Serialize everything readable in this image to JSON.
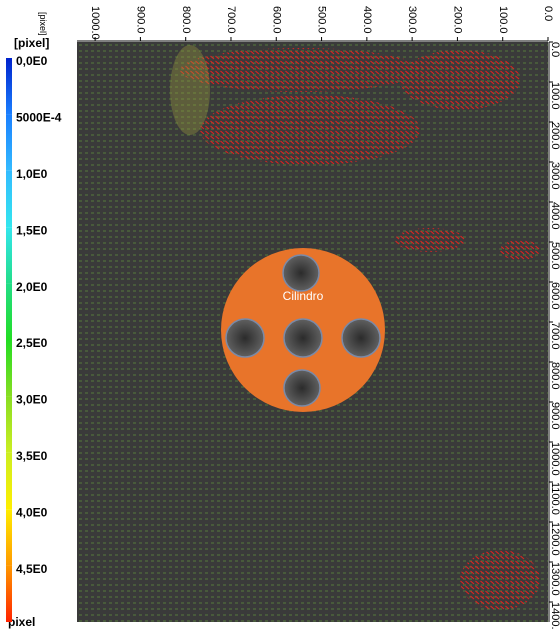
{
  "chart_data": {
    "type": "vector_field",
    "x_axis_label": "[pixel]",
    "xlim": [
      1040,
      0
    ],
    "xticks": [
      {
        "value": 1000,
        "label": "1000.0"
      },
      {
        "value": 900,
        "label": "900.0"
      },
      {
        "value": 800,
        "label": "800.0"
      },
      {
        "value": 700,
        "label": "700.0"
      },
      {
        "value": 600,
        "label": "600.0"
      },
      {
        "value": 500,
        "label": "500.0"
      },
      {
        "value": 400,
        "label": "400.0"
      },
      {
        "value": 300,
        "label": "300.0"
      },
      {
        "value": 200,
        "label": "200.0"
      },
      {
        "value": 100,
        "label": "100.0"
      },
      {
        "value": 0,
        "label": "0.0"
      }
    ],
    "ylim": [
      0,
      1450
    ],
    "yticks": [
      {
        "value": 0,
        "label": "0.0"
      },
      {
        "value": 100,
        "label": "100.0"
      },
      {
        "value": 200,
        "label": "200.0"
      },
      {
        "value": 300,
        "label": "300.0"
      },
      {
        "value": 400,
        "label": "400.0"
      },
      {
        "value": 500,
        "label": "500.0"
      },
      {
        "value": 600,
        "label": "600.0"
      },
      {
        "value": 700,
        "label": "700.0"
      },
      {
        "value": 800,
        "label": "800.0"
      },
      {
        "value": 900,
        "label": "900.0"
      },
      {
        "value": 1000,
        "label": "1000.0"
      },
      {
        "value": 1100,
        "label": "1100.0"
      },
      {
        "value": 1200,
        "label": "1200.0"
      },
      {
        "value": 1300,
        "label": "1300.0"
      },
      {
        "value": 1400,
        "label": "1400.0"
      }
    ],
    "annotation": "Cilindro",
    "colorbar": {
      "title": "[pixel]",
      "unit": "pixel",
      "clim": [
        0,
        5
      ],
      "ticks": [
        {
          "value": 0,
          "label": "0,0E0"
        },
        {
          "value": 0.5,
          "label": "5000E-4"
        },
        {
          "value": 1,
          "label": "1,0E0"
        },
        {
          "value": 1.5,
          "label": "1,5E0"
        },
        {
          "value": 2,
          "label": "2,0E0"
        },
        {
          "value": 2.5,
          "label": "2,5E0"
        },
        {
          "value": 3,
          "label": "3,0E0"
        },
        {
          "value": 3.5,
          "label": "3,5E0"
        },
        {
          "value": 4,
          "label": "4,0E0"
        },
        {
          "value": 4.5,
          "label": "4,5E0"
        }
      ],
      "colors": [
        "#0022cc",
        "#1a7fff",
        "#33bbff",
        "#33e6ee",
        "#22dd88",
        "#22dd22",
        "#88dd22",
        "#ccee22",
        "#ffee00",
        "#ff9900",
        "#ff2200"
      ]
    }
  }
}
